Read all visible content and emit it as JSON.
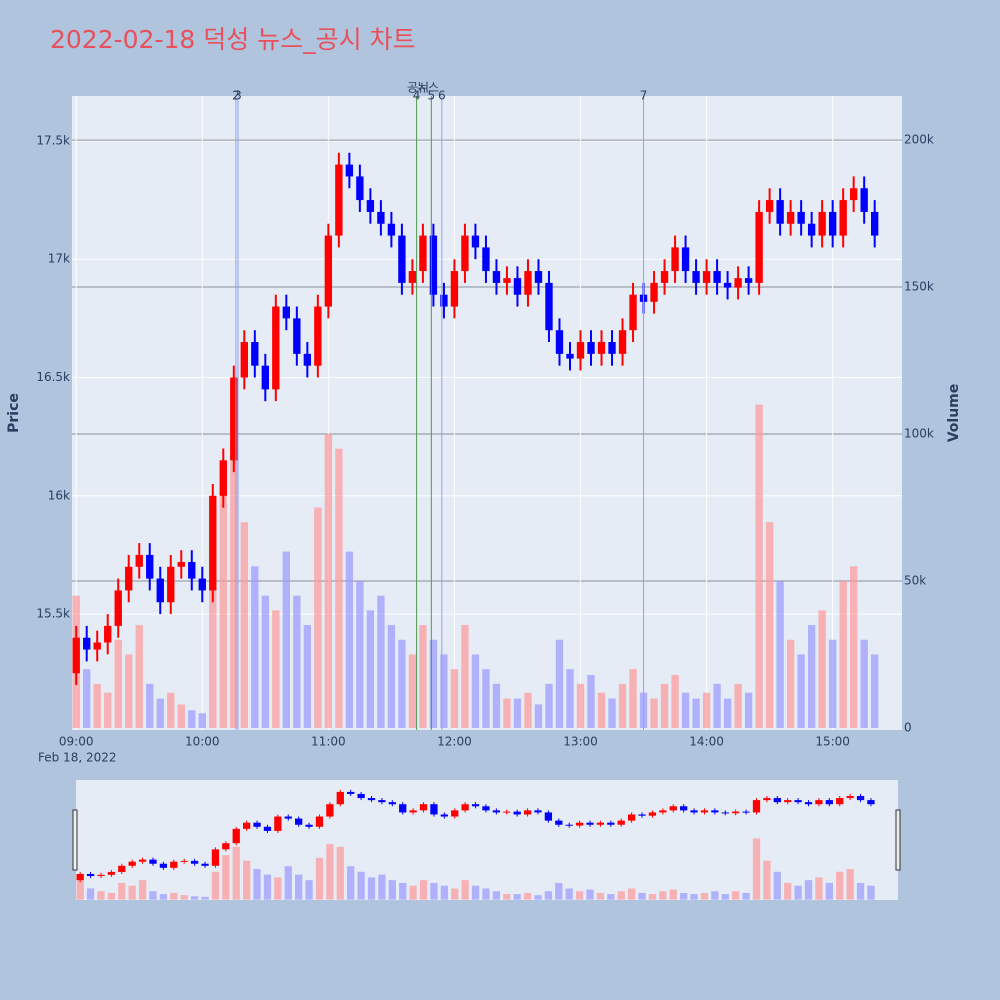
{
  "chart_data": {
    "type": "candlestick",
    "title": "2022-02-18 덕성 뉴스_공시 차트",
    "ylabel": "Price",
    "y2label": "Volume",
    "xdate": "Feb 18, 2022",
    "increasing_color": "#ff0000",
    "decreasing_color": "#0000ff",
    "x": [
      "09:00",
      "09:05",
      "09:10",
      "09:15",
      "09:20",
      "09:25",
      "09:30",
      "09:35",
      "09:40",
      "09:45",
      "09:50",
      "09:55",
      "10:00",
      "10:05",
      "10:10",
      "10:15",
      "10:20",
      "10:25",
      "10:30",
      "10:35",
      "10:40",
      "10:45",
      "10:50",
      "10:55",
      "11:00",
      "11:05",
      "11:10",
      "11:15",
      "11:20",
      "11:25",
      "11:30",
      "11:35",
      "11:40",
      "11:45",
      "11:50",
      "11:55",
      "12:00",
      "12:05",
      "12:10",
      "12:15",
      "12:20",
      "12:25",
      "12:30",
      "12:35",
      "12:40",
      "12:45",
      "12:50",
      "12:55",
      "13:00",
      "13:05",
      "13:10",
      "13:15",
      "13:20",
      "13:25",
      "13:30",
      "13:35",
      "13:40",
      "13:45",
      "13:50",
      "13:55",
      "14:00",
      "14:05",
      "14:10",
      "14:15",
      "14:20",
      "14:25",
      "14:30",
      "14:35",
      "14:40",
      "14:45",
      "14:50",
      "14:55",
      "15:00",
      "15:05",
      "15:10",
      "15:15",
      "15:20"
    ],
    "open": [
      15250,
      15400,
      15350,
      15380,
      15450,
      15600,
      15700,
      15750,
      15650,
      15550,
      15700,
      15720,
      15650,
      15600,
      16000,
      16150,
      16500,
      16650,
      16550,
      16450,
      16800,
      16750,
      16600,
      16550,
      16800,
      17100,
      17400,
      17350,
      17250,
      17200,
      17150,
      17100,
      16900,
      16950,
      17100,
      16850,
      16800,
      16950,
      17100,
      17050,
      16950,
      16900,
      16920,
      16850,
      16950,
      16900,
      16700,
      16600,
      16580,
      16650,
      16600,
      16650,
      16600,
      16700,
      16850,
      16820,
      16900,
      16950,
      17050,
      16950,
      16900,
      16950,
      16900,
      16880,
      16920,
      16900,
      17200,
      17250,
      17150,
      17200,
      17150,
      17100,
      17200,
      17100,
      17250,
      17300,
      17200
    ],
    "high": [
      15450,
      15450,
      15430,
      15500,
      15650,
      15750,
      15800,
      15800,
      15700,
      15750,
      15770,
      15770,
      15700,
      16050,
      16200,
      16550,
      16700,
      16700,
      16600,
      16850,
      16850,
      16800,
      16650,
      16850,
      17150,
      17450,
      17450,
      17400,
      17300,
      17250,
      17200,
      17150,
      17000,
      17150,
      17150,
      16900,
      17000,
      17150,
      17150,
      17100,
      17000,
      16970,
      16970,
      17000,
      17000,
      16950,
      16750,
      16650,
      16700,
      16700,
      16700,
      16700,
      16750,
      16900,
      16900,
      16950,
      17000,
      17100,
      17100,
      17000,
      17000,
      17000,
      16950,
      16970,
      16970,
      17250,
      17300,
      17300,
      17250,
      17250,
      17200,
      17250,
      17250,
      17300,
      17350,
      17350,
      17250
    ],
    "low": [
      15200,
      15300,
      15300,
      15330,
      15400,
      15550,
      15650,
      15600,
      15500,
      15500,
      15650,
      15600,
      15550,
      15550,
      15950,
      16100,
      16450,
      16500,
      16400,
      16400,
      16700,
      16550,
      16500,
      16500,
      16750,
      17050,
      17300,
      17200,
      17150,
      17100,
      17050,
      16850,
      16850,
      16900,
      16800,
      16750,
      16750,
      16900,
      17000,
      16900,
      16850,
      16850,
      16800,
      16800,
      16850,
      16650,
      16550,
      16530,
      16530,
      16550,
      16550,
      16550,
      16550,
      16650,
      16770,
      16770,
      16850,
      16900,
      16900,
      16850,
      16850,
      16850,
      16830,
      16830,
      16850,
      16850,
      17150,
      17100,
      17100,
      17100,
      17050,
      17050,
      17050,
      17050,
      17200,
      17150,
      17050
    ],
    "close": [
      15400,
      15350,
      15380,
      15450,
      15600,
      15700,
      15750,
      15650,
      15550,
      15700,
      15720,
      15650,
      15600,
      16000,
      16150,
      16500,
      16650,
      16550,
      16450,
      16800,
      16750,
      16600,
      16550,
      16800,
      17100,
      17400,
      17350,
      17250,
      17200,
      17150,
      17100,
      16900,
      16950,
      17100,
      16850,
      16800,
      16950,
      17100,
      17050,
      16950,
      16900,
      16920,
      16850,
      16950,
      16900,
      16700,
      16600,
      16580,
      16650,
      16600,
      16650,
      16600,
      16700,
      16850,
      16820,
      16900,
      16950,
      17050,
      16950,
      16900,
      16950,
      16900,
      16880,
      16920,
      16900,
      17200,
      17250,
      17150,
      17200,
      17150,
      17100,
      17200,
      17100,
      17250,
      17300,
      17200,
      17100
    ],
    "volume": [
      45000,
      20000,
      15000,
      12000,
      30000,
      25000,
      35000,
      15000,
      10000,
      12000,
      8000,
      6000,
      5000,
      50000,
      80000,
      95000,
      70000,
      55000,
      45000,
      40000,
      60000,
      45000,
      35000,
      75000,
      100000,
      95000,
      60000,
      50000,
      40000,
      45000,
      35000,
      30000,
      25000,
      35000,
      30000,
      25000,
      20000,
      35000,
      25000,
      20000,
      15000,
      10000,
      10000,
      12000,
      8000,
      15000,
      30000,
      20000,
      15000,
      18000,
      12000,
      10000,
      15000,
      20000,
      12000,
      10000,
      15000,
      18000,
      12000,
      10000,
      12000,
      15000,
      10000,
      15000,
      12000,
      110000,
      70000,
      50000,
      30000,
      25000,
      35000,
      40000,
      30000,
      50000,
      55000,
      30000,
      25000
    ],
    "xlim": [
      "08:58",
      "15:33"
    ],
    "xticks": [
      "09:00",
      "10:00",
      "11:00",
      "12:00",
      "13:00",
      "14:00",
      "15:00"
    ],
    "ylim": [
      15010,
      17690
    ],
    "yticks": [
      {
        "value": 15500,
        "label": "15.5k"
      },
      {
        "value": 16000,
        "label": "16k"
      },
      {
        "value": 16500,
        "label": "16.5k"
      },
      {
        "value": 17000,
        "label": "17k"
      },
      {
        "value": 17500,
        "label": "17.5k"
      }
    ],
    "y2lim": [
      -700,
      215000
    ],
    "y2ticks": [
      0,
      {
        "value": 50000,
        "label": "50k"
      },
      {
        "value": 100000,
        "label": "100k"
      },
      {
        "value": 150000,
        "label": "150k"
      },
      {
        "value": 200000,
        "label": "200k"
      }
    ],
    "events": [
      {
        "label": "2",
        "time": "10:16",
        "color": "#8fa3f0"
      },
      {
        "label": "3",
        "time": "10:17",
        "color": "#8fa3f0"
      },
      {
        "label": "4",
        "time": "11:42",
        "color": "#4f9a4f"
      },
      {
        "label": "5",
        "time": "11:49",
        "color": "#4f9a4f"
      },
      {
        "label": "6",
        "time": "11:54",
        "color": "#8fa3f0"
      },
      {
        "label": "7",
        "time": "13:30",
        "color": "#8fa3f0"
      }
    ],
    "annotations": [
      "공시",
      "뉴스"
    ]
  }
}
